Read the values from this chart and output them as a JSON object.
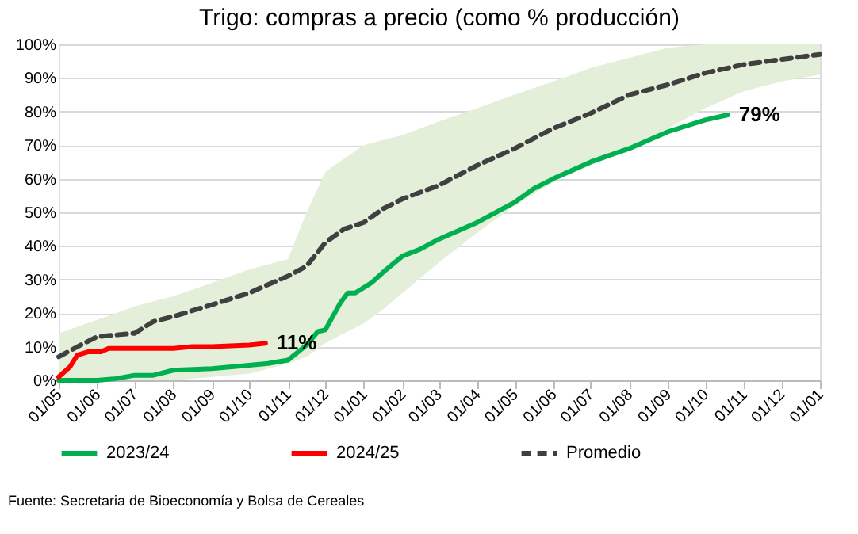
{
  "chart_data": {
    "type": "line",
    "title": "Trigo: compras a precio (como % producción)",
    "xlim": [
      "2023-05-01",
      "2025-01-01"
    ],
    "xticks": [
      {
        "value": "2023-05-01",
        "label": "01/05"
      },
      {
        "value": "2023-06-01",
        "label": "01/06"
      },
      {
        "value": "2023-07-01",
        "label": "01/07"
      },
      {
        "value": "2023-08-01",
        "label": "01/08"
      },
      {
        "value": "2023-09-01",
        "label": "01/09"
      },
      {
        "value": "2023-10-01",
        "label": "01/10"
      },
      {
        "value": "2023-11-01",
        "label": "01/11"
      },
      {
        "value": "2023-12-01",
        "label": "01/12"
      },
      {
        "value": "2024-01-01",
        "label": "01/01"
      },
      {
        "value": "2024-02-01",
        "label": "01/02"
      },
      {
        "value": "2024-03-01",
        "label": "01/03"
      },
      {
        "value": "2024-04-01",
        "label": "01/04"
      },
      {
        "value": "2024-05-01",
        "label": "01/05"
      },
      {
        "value": "2024-06-01",
        "label": "01/06"
      },
      {
        "value": "2024-07-01",
        "label": "01/07"
      },
      {
        "value": "2024-08-01",
        "label": "01/08"
      },
      {
        "value": "2024-09-01",
        "label": "01/09"
      },
      {
        "value": "2024-10-01",
        "label": "01/10"
      },
      {
        "value": "2024-11-01",
        "label": "01/11"
      },
      {
        "value": "2024-12-01",
        "label": "01/12"
      },
      {
        "value": "2025-01-01",
        "label": "01/01"
      }
    ],
    "ylim": [
      0,
      100
    ],
    "yticks": [
      {
        "value": 0,
        "label": "0%"
      },
      {
        "value": 10,
        "label": "10%"
      },
      {
        "value": 20,
        "label": "20%"
      },
      {
        "value": 30,
        "label": "30%"
      },
      {
        "value": 40,
        "label": "40%"
      },
      {
        "value": 50,
        "label": "50%"
      },
      {
        "value": 60,
        "label": "60%"
      },
      {
        "value": 70,
        "label": "70%"
      },
      {
        "value": 80,
        "label": "80%"
      },
      {
        "value": 90,
        "label": "90%"
      },
      {
        "value": 100,
        "label": "100%"
      }
    ],
    "grid": "y",
    "legend": "bottom",
    "series": [
      {
        "name": "2023/24",
        "color": "#00b050",
        "line_style": "solid",
        "x": [
          "2023-05-01",
          "2023-06-01",
          "2023-06-16",
          "2023-07-01",
          "2023-07-16",
          "2023-08-01",
          "2023-09-01",
          "2023-10-01",
          "2023-10-16",
          "2023-11-01",
          "2023-11-16",
          "2023-11-25",
          "2023-12-01",
          "2023-12-13",
          "2023-12-19",
          "2023-12-25",
          "2024-01-07",
          "2024-01-19",
          "2024-02-01",
          "2024-02-15",
          "2024-03-01",
          "2024-04-01",
          "2024-05-01",
          "2024-05-16",
          "2024-06-01",
          "2024-07-01",
          "2024-08-01",
          "2024-09-01",
          "2024-10-01",
          "2024-10-19"
        ],
        "values": [
          0,
          0,
          0.5,
          1.5,
          1.5,
          3,
          3.5,
          4.5,
          5,
          6,
          10.5,
          14.5,
          15,
          23,
          26,
          26,
          29,
          33,
          37,
          39,
          42,
          47,
          53,
          57,
          60,
          65,
          69,
          74,
          77.5,
          79
        ]
      },
      {
        "name": "2024/25",
        "color": "#ff0000",
        "line_style": "solid",
        "x": [
          "2023-05-01",
          "2023-05-10",
          "2023-05-16",
          "2023-05-25",
          "2023-06-04",
          "2023-06-10",
          "2023-07-01",
          "2023-08-01",
          "2023-08-16",
          "2023-09-01",
          "2023-10-01",
          "2023-10-14"
        ],
        "values": [
          1,
          4,
          7.5,
          8.5,
          8.5,
          9.5,
          9.5,
          9.5,
          10,
          10,
          10.5,
          11
        ]
      },
      {
        "name": "Promedio",
        "color": "#404040",
        "line_style": "dashed",
        "x": [
          "2023-05-01",
          "2023-05-16",
          "2023-06-01",
          "2023-06-16",
          "2023-07-01",
          "2023-07-16",
          "2023-08-01",
          "2023-09-01",
          "2023-10-01",
          "2023-10-16",
          "2023-11-01",
          "2023-11-16",
          "2023-12-01",
          "2023-12-16",
          "2024-01-01",
          "2024-01-16",
          "2024-02-01",
          "2024-03-01",
          "2024-04-01",
          "2024-05-01",
          "2024-06-01",
          "2024-07-01",
          "2024-08-01",
          "2024-09-01",
          "2024-10-01",
          "2024-11-01",
          "2024-12-01",
          "2025-01-01"
        ],
        "values": [
          7,
          10,
          13,
          13.5,
          14,
          17.5,
          19,
          22.5,
          26,
          28.5,
          31,
          34,
          41,
          45,
          47,
          51,
          54,
          58,
          64,
          69,
          75,
          79.5,
          85,
          88,
          91.5,
          94,
          95.5,
          97
        ],
        "lower": [
          0,
          0,
          0,
          0,
          0,
          0,
          0,
          1,
          2,
          3.5,
          5,
          7,
          11,
          14,
          17,
          21,
          26,
          35,
          44,
          52,
          59,
          64,
          69,
          75,
          81,
          86,
          89,
          91
        ],
        "upper": [
          14,
          16,
          18,
          20,
          22,
          23.5,
          25,
          29,
          33,
          34.5,
          36,
          50,
          62,
          66,
          70,
          71.5,
          73,
          77,
          81,
          85,
          89,
          93,
          96,
          99,
          100,
          100,
          100,
          100
        ]
      }
    ],
    "annotations": [
      {
        "text": "79%",
        "x": "2024-10-19",
        "y": 79
      },
      {
        "text": "11%",
        "x": "2023-10-14",
        "y": 11
      },
      "Fuente: Secretaria de Bioeconomía y Bolsa de Cereales"
    ]
  }
}
